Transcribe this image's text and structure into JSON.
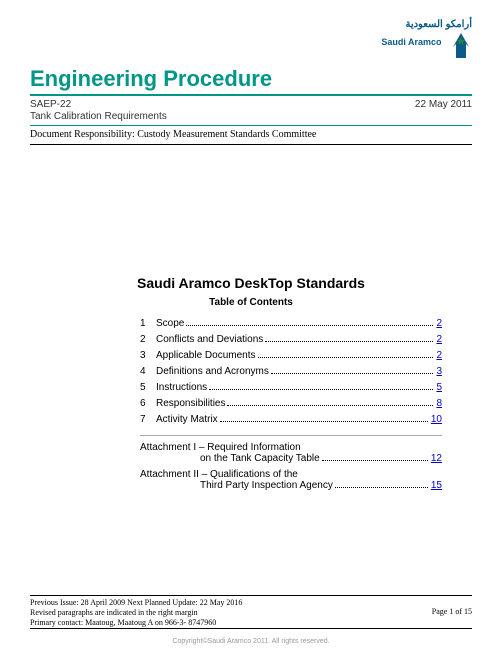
{
  "logo": {
    "arabic": "أرامكو السعودية",
    "english": "Saudi Aramco",
    "star_fill": "#1f8b3b",
    "burst_fill": "#0a5a8a"
  },
  "header": {
    "title": "Engineering Procedure",
    "doc_code": "SAEP-22",
    "doc_date": "22 May 2011",
    "subtitle": "Tank Calibration Requirements",
    "responsibility": "Document Responsibility: Custody Measurement Standards Committee",
    "colors": {
      "title_color": "#009688",
      "rule_color": "#009688"
    }
  },
  "standards_heading": "Saudi Aramco DeskTop Standards",
  "toc_heading": "Table of Contents",
  "toc_items": [
    {
      "num": "1",
      "label": "Scope",
      "page": "2"
    },
    {
      "num": "2",
      "label": "Conflicts and Deviations",
      "page": "2"
    },
    {
      "num": "3",
      "label": "Applicable Documents",
      "page": "2"
    },
    {
      "num": "4",
      "label": "Definitions and Acronyms",
      "page": "3"
    },
    {
      "num": "5",
      "label": "Instructions",
      "page": "5"
    },
    {
      "num": "6",
      "label": "Responsibilities",
      "page": "8"
    },
    {
      "num": "7",
      "label": "Activity Matrix",
      "page": "10"
    }
  ],
  "attachments": [
    {
      "line1": "Attachment I – Required Information",
      "line2": "on the Tank Capacity Table",
      "page": "12"
    },
    {
      "line1": "Attachment II – Qualifications of the",
      "line2": "Third Party Inspection Agency",
      "page": "15"
    }
  ],
  "footer": {
    "previous_line": "Previous Issue: 28 April 2009    Next Planned Update: 22 May 2016",
    "revised_line": "Revised paragraphs are indicated in the right margin",
    "contact_line": "Primary contact: Maatoug, Maatoug A on 966-3- 8747960",
    "page_string": "Page 1 of 15"
  },
  "copyright": "Copyright©Saudi Aramco 2011. All rights reserved."
}
